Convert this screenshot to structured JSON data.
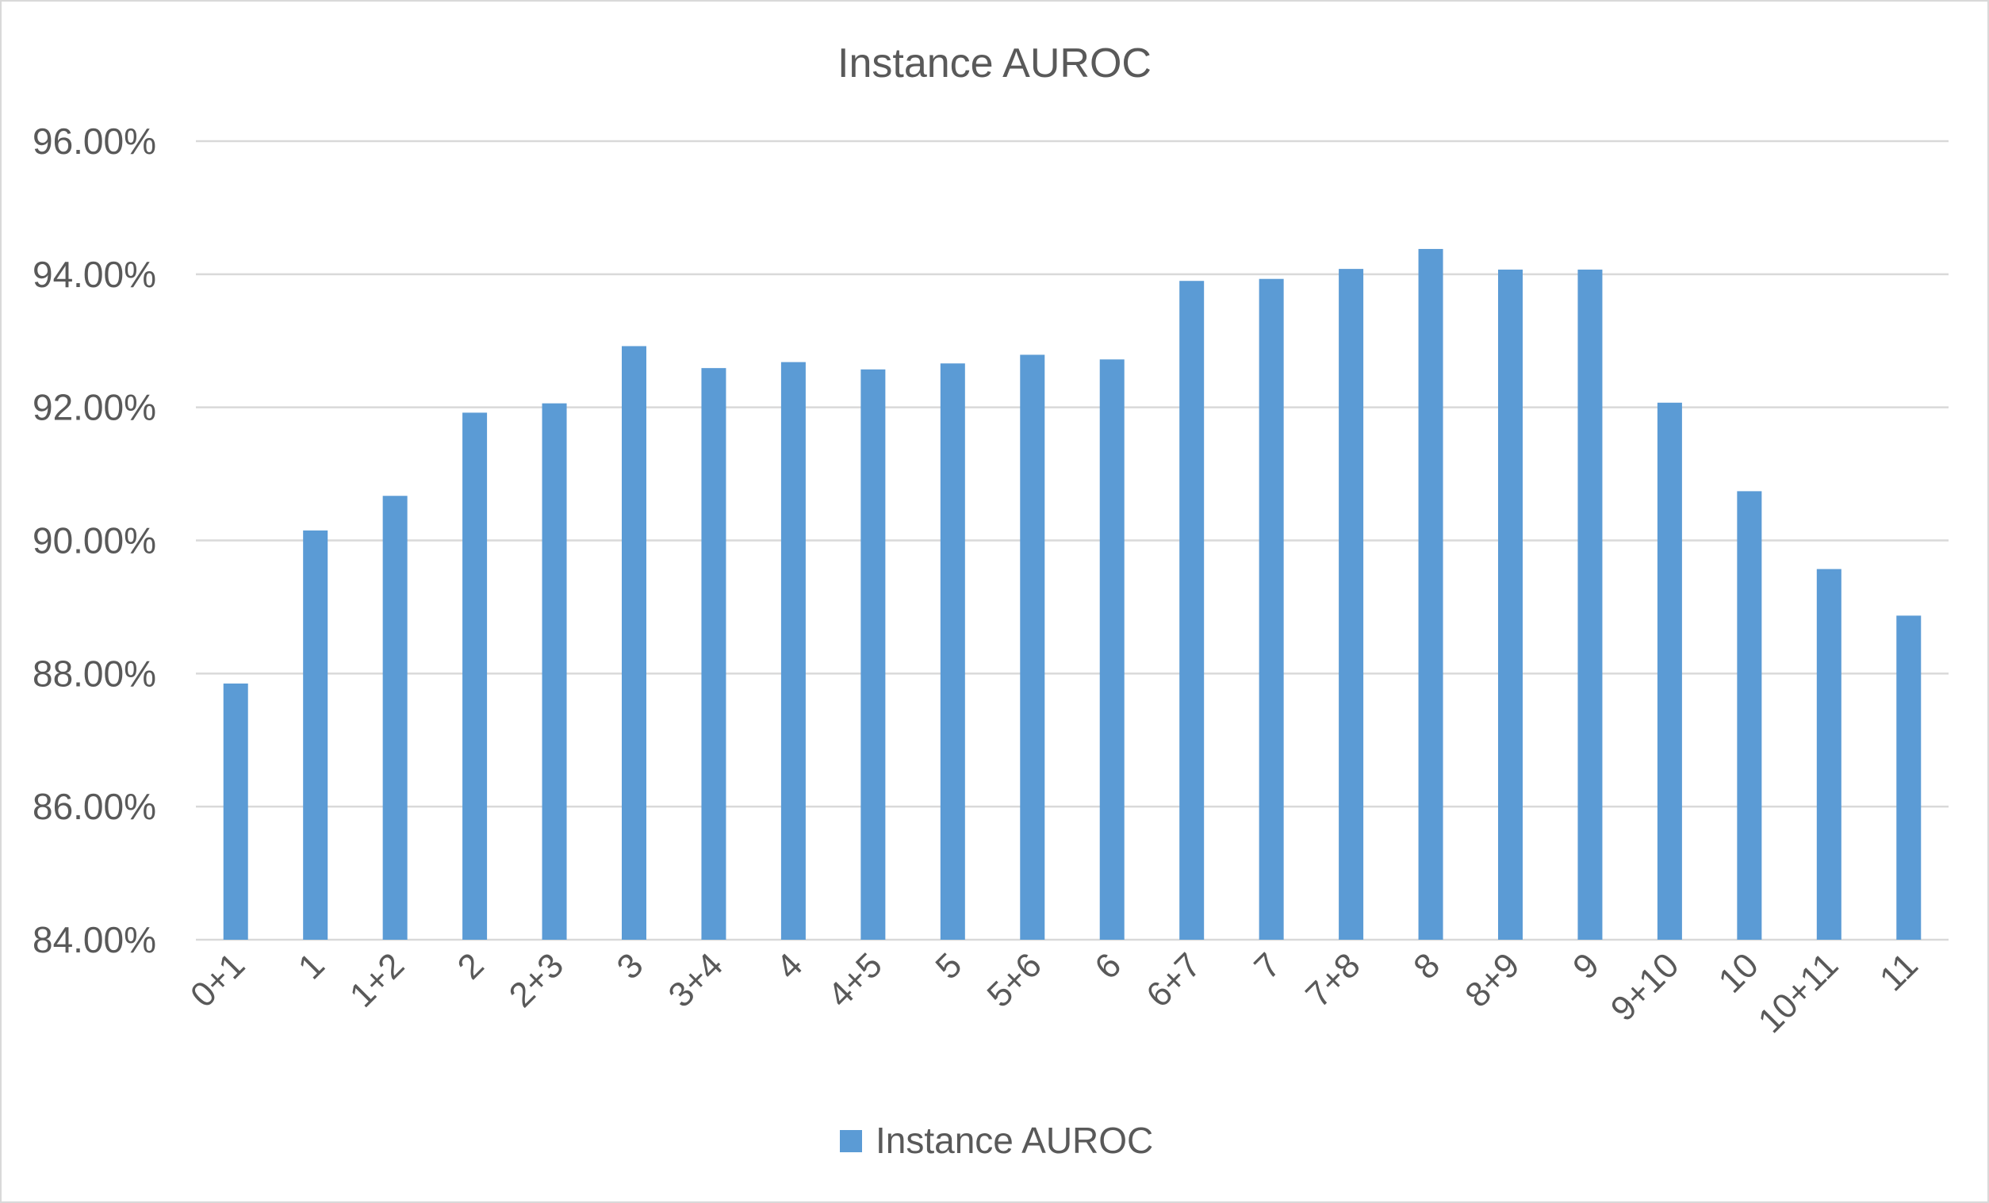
{
  "chart_data": {
    "type": "bar",
    "title": "Instance AUROC",
    "xlabel": "",
    "ylabel": "",
    "categories": [
      "0+1",
      "1",
      "1+2",
      "2",
      "2+3",
      "3",
      "3+4",
      "4",
      "4+5",
      "5",
      "5+6",
      "6",
      "6+7",
      "7",
      "7+8",
      "8",
      "8+9",
      "9",
      "9+10",
      "10",
      "10+11",
      "11"
    ],
    "series": [
      {
        "name": "Instance AUROC",
        "color": "#5b9bd5",
        "values": [
          87.85,
          90.15,
          90.67,
          91.92,
          92.06,
          92.92,
          92.59,
          92.68,
          92.57,
          92.66,
          92.79,
          92.72,
          93.9,
          93.93,
          94.08,
          94.38,
          94.07,
          94.07,
          92.07,
          90.74,
          89.57,
          88.87
        ]
      }
    ],
    "ylim": [
      84,
      96
    ],
    "yticks": [
      84,
      86,
      88,
      90,
      92,
      94,
      96
    ],
    "ytick_labels": [
      "84.00%",
      "86.00%",
      "88.00%",
      "90.00%",
      "92.00%",
      "94.00%",
      "96.00%"
    ],
    "grid": true,
    "legend": {
      "position": "bottom",
      "entries": [
        "Instance AUROC"
      ]
    }
  }
}
